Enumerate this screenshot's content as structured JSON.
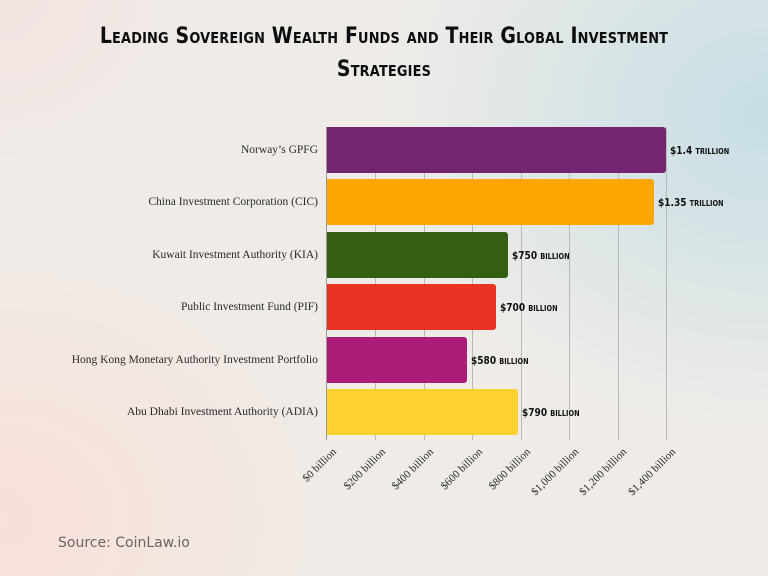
{
  "title": "Leading Sovereign Wealth Funds and Their Global Investment Strategies",
  "source": "Source: CoinLaw.io",
  "chart_data": {
    "type": "bar",
    "orientation": "horizontal",
    "title": "Leading Sovereign Wealth Funds and Their Global Investment Strategies",
    "xlabel": "",
    "ylabel": "",
    "xlim": [
      0,
      1400
    ],
    "unit": "billion USD",
    "grid": true,
    "legend": "none",
    "categories": [
      "Norway’s GPFG",
      "China Investment Corporation (CIC)",
      "Kuwait Investment Authority (KIA)",
      "Public Investment Fund (PIF)",
      "Hong Kong Monetary Authority Investment Portfolio",
      "Abu Dhabi Investment Authority (ADIA)"
    ],
    "values": [
      1400,
      1350,
      750,
      700,
      580,
      790
    ],
    "data_labels": [
      "$1.4 trillion",
      "$1.35 trillion",
      "$750 billion",
      "$700 billion",
      "$580 billion",
      "$790 billion"
    ],
    "colors": [
      "#74256f",
      "#fca503",
      "#345f13",
      "#e93323",
      "#ac1b78",
      "#fdd12f"
    ],
    "x_ticks": [
      0,
      200,
      400,
      600,
      800,
      1000,
      1200,
      1400
    ],
    "x_tick_labels": [
      "$0 billion",
      "$200 billion",
      "$400 billion",
      "$600 billion",
      "$800 billion",
      "$1,000 billion",
      "$1,200 billion",
      "$1,400 billion"
    ]
  }
}
